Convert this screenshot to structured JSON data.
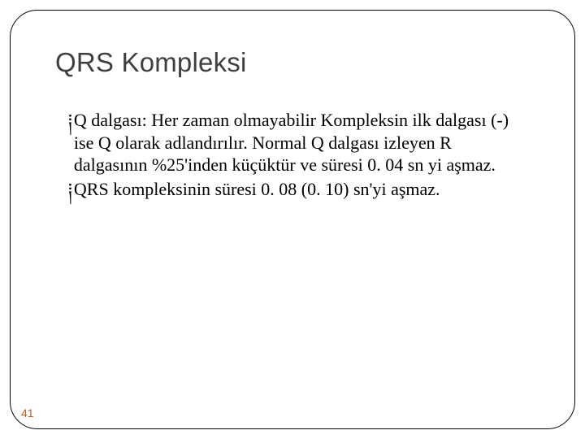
{
  "slide": {
    "title": "QRS Kompleksi",
    "title_fontsize": 33,
    "title_color": "#3f3f3f",
    "bullets": [
      {
        "text": "Q dalgası: Her zaman olmayabilir Kompleksin ilk dalgası (-) ise Q olarak adlandırılır. Normal Q dalgası izleyen R dalgasının %25'inden küçüktür ve süresi 0. 04 sn yi aşmaz."
      },
      {
        "text": "QRS kompleksinin süresi 0. 08 (0. 10) sn'yi aşmaz."
      }
    ],
    "bullet_symbol": "༐",
    "body_fontsize": 22,
    "body_color": "#000000",
    "border_color": "#000000",
    "border_radius": 34,
    "background": "#ffffff",
    "page_number": "41",
    "page_number_fontsize": 14,
    "page_number_color": "#be5c22"
  }
}
